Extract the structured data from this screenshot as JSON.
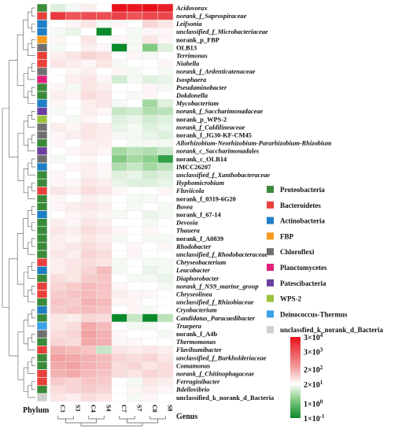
{
  "chart_data": {
    "type": "heatmap",
    "xlabel": "Genus",
    "row_annotation_label": "Phylum",
    "columns": [
      "C3",
      "S3",
      "C4",
      "S4",
      "C7",
      "S7",
      "C8",
      "S8"
    ],
    "column_groups": [
      [
        "C3",
        "S3"
      ],
      [
        "C4",
        "S4"
      ],
      [
        "C7",
        "S7"
      ],
      [
        "C8",
        "S8"
      ]
    ],
    "rows": [
      {
        "name": "Acidovorax",
        "italic": true,
        "phylum": "Proteobacteria",
        "values": [
          1.0,
          1.2,
          1.5,
          1.3,
          4.5,
          4.4,
          4.5,
          4.3
        ]
      },
      {
        "name": "norank_f_Saprospiraceae",
        "italic": true,
        "phylum": "Bacteroidetes",
        "values": [
          3.9,
          3.5,
          3.6,
          3.6,
          3.8,
          3.5,
          3.7,
          3.7
        ]
      },
      {
        "name": "Leifsonia",
        "italic": true,
        "phylum": "Actinobacteria",
        "values": [
          1.3,
          1.4,
          1.6,
          1.2,
          1.4,
          1.3,
          1.8,
          1.6
        ]
      },
      {
        "name": "unclassified_f_Microbacteriaceae",
        "italic": true,
        "phylum": "Actinobacteria",
        "values": [
          1.2,
          1.1,
          1.3,
          -1.0,
          1.3,
          1.2,
          1.4,
          1.4
        ]
      },
      {
        "name": "norank_p_FBP",
        "italic": false,
        "phylum": "FBP",
        "values": [
          1.4,
          1.3,
          1.6,
          1.3,
          1.4,
          1.2,
          1.6,
          1.4
        ]
      },
      {
        "name": "OLB13",
        "italic": false,
        "phylum": "Chloroflexi",
        "values": [
          1.2,
          1.3,
          1.5,
          1.4,
          -1.0,
          1.2,
          0.2,
          1.0
        ]
      },
      {
        "name": "Terrimonas",
        "italic": true,
        "phylum": "Bacteroidetes",
        "values": [
          1.5,
          1.6,
          1.8,
          1.7,
          1.3,
          1.4,
          1.2,
          1.3
        ]
      },
      {
        "name": "Niabella",
        "italic": true,
        "phylum": "Bacteroidetes",
        "values": [
          1.6,
          1.5,
          1.4,
          1.6,
          1.2,
          1.3,
          1.3,
          1.4
        ]
      },
      {
        "name": "norank_f_Ardenticatenaceae",
        "italic": true,
        "phylum": "Chloroflexi",
        "values": [
          1.3,
          1.4,
          1.5,
          1.3,
          1.4,
          1.2,
          1.3,
          1.2
        ]
      },
      {
        "name": "Isosphaera",
        "italic": true,
        "phylum": "Planctomycetes",
        "values": [
          1.3,
          1.5,
          1.6,
          1.4,
          0.9,
          1.2,
          1.0,
          1.1
        ]
      },
      {
        "name": "Pseudaminobacter",
        "italic": true,
        "phylum": "Proteobacteria",
        "values": [
          1.4,
          1.2,
          1.6,
          1.5,
          1.3,
          1.3,
          1.4,
          1.2
        ]
      },
      {
        "name": "Dokdonella",
        "italic": true,
        "phylum": "Proteobacteria",
        "values": [
          1.5,
          1.4,
          1.7,
          1.6,
          1.3,
          1.2,
          1.4,
          1.3
        ]
      },
      {
        "name": "Mycobacterium",
        "italic": true,
        "phylum": "Actinobacteria",
        "values": [
          1.4,
          1.3,
          1.5,
          1.6,
          1.2,
          1.3,
          0.5,
          1.0
        ]
      },
      {
        "name": "norank_f_Saccharimonadaceae",
        "italic": true,
        "phylum": "Patescibacteria",
        "values": [
          1.2,
          1.3,
          1.5,
          1.4,
          0.8,
          0.9,
          0.6,
          0.7
        ]
      },
      {
        "name": "norank_p_WPS-2",
        "italic": false,
        "phylum": "WPS-2",
        "values": [
          1.3,
          1.2,
          1.4,
          1.3,
          1.0,
          1.1,
          0.9,
          1.0
        ]
      },
      {
        "name": "norank_f_Caldilineaceae",
        "italic": true,
        "phylum": "Chloroflexi",
        "values": [
          1.5,
          1.4,
          1.6,
          1.5,
          1.1,
          1.2,
          1.0,
          1.1
        ]
      },
      {
        "name": "norank_f_JG30-KF-CM45",
        "italic": false,
        "phylum": "Chloroflexi",
        "values": [
          1.4,
          1.5,
          1.6,
          1.5,
          1.2,
          1.2,
          1.1,
          1.0
        ]
      },
      {
        "name": "Allorhizobium-Neorhizobium-Pararhizobium-Rhizobium",
        "italic": true,
        "phylum": "Proteobacteria",
        "values": [
          1.4,
          1.3,
          1.5,
          1.5,
          1.3,
          1.2,
          1.2,
          1.2
        ]
      },
      {
        "name": "norank_c_Saccharimonadales",
        "italic": true,
        "phylum": "Patescibacteria",
        "values": [
          1.3,
          1.4,
          1.5,
          1.4,
          0.5,
          0.7,
          0.6,
          0.8
        ]
      },
      {
        "name": "norank_c_OLB14",
        "italic": false,
        "phylum": "Chloroflexi",
        "values": [
          1.2,
          1.3,
          1.4,
          1.3,
          0.2,
          0.5,
          0.3,
          -0.6
        ]
      },
      {
        "name": "IMCC26207",
        "italic": false,
        "phylum": "Actinobacteria",
        "values": [
          1.3,
          1.4,
          1.5,
          1.4,
          0.6,
          0.8,
          0.5,
          0.7
        ]
      },
      {
        "name": "unclassified_f_Xanthobacteraceae",
        "italic": true,
        "phylum": "Proteobacteria",
        "values": [
          1.4,
          1.3,
          1.5,
          1.4,
          1.0,
          1.1,
          0.9,
          1.0
        ]
      },
      {
        "name": "Hyphomicrobium",
        "italic": true,
        "phylum": "Proteobacteria",
        "values": [
          1.4,
          1.4,
          1.6,
          1.5,
          1.1,
          1.0,
          1.0,
          1.1
        ]
      },
      {
        "name": "Fluviicola",
        "italic": true,
        "phylum": "Bacteroidetes",
        "values": [
          1.6,
          1.5,
          1.7,
          1.6,
          1.4,
          1.3,
          1.3,
          1.4
        ]
      },
      {
        "name": "norank_f_0319-6G20",
        "italic": false,
        "phylum": "Proteobacteria",
        "values": [
          1.4,
          1.3,
          1.5,
          1.4,
          1.3,
          1.2,
          1.2,
          1.3
        ]
      },
      {
        "name": "Bosea",
        "italic": true,
        "phylum": "Proteobacteria",
        "values": [
          1.4,
          1.5,
          1.6,
          1.5,
          1.3,
          1.2,
          1.3,
          1.2
        ]
      },
      {
        "name": "norank_f_67-14",
        "italic": false,
        "phylum": "Actinobacteria",
        "values": [
          1.3,
          1.4,
          1.5,
          1.4,
          1.2,
          1.3,
          1.1,
          1.2
        ]
      },
      {
        "name": "Devosia",
        "italic": true,
        "phylum": "Proteobacteria",
        "values": [
          1.5,
          1.4,
          1.6,
          1.5,
          1.3,
          1.3,
          1.2,
          1.3
        ]
      },
      {
        "name": "Thauera",
        "italic": true,
        "phylum": "Proteobacteria",
        "values": [
          1.6,
          1.5,
          1.7,
          1.6,
          1.4,
          1.3,
          1.4,
          1.3
        ]
      },
      {
        "name": "norank_f_A0839",
        "italic": false,
        "phylum": "Proteobacteria",
        "values": [
          1.5,
          1.4,
          1.6,
          1.5,
          1.2,
          1.3,
          1.2,
          1.2
        ]
      },
      {
        "name": "Rhodobacter",
        "italic": true,
        "phylum": "Proteobacteria",
        "values": [
          1.5,
          1.6,
          1.7,
          1.6,
          1.3,
          1.4,
          1.3,
          1.4
        ]
      },
      {
        "name": "unclassified_f_Rhodobacteraceae",
        "italic": true,
        "phylum": "Proteobacteria",
        "values": [
          1.6,
          1.5,
          1.8,
          1.7,
          1.3,
          1.4,
          1.3,
          1.3
        ]
      },
      {
        "name": "Chryseobacterium",
        "italic": true,
        "phylum": "Bacteroidetes",
        "values": [
          1.5,
          1.6,
          1.7,
          1.6,
          1.2,
          1.3,
          1.2,
          1.2
        ]
      },
      {
        "name": "Leucobacter",
        "italic": true,
        "phylum": "Actinobacteria",
        "values": [
          1.5,
          1.6,
          1.8,
          2.1,
          1.2,
          1.3,
          1.1,
          1.2
        ]
      },
      {
        "name": "Diaphorobacter",
        "italic": true,
        "phylum": "Proteobacteria",
        "values": [
          1.7,
          1.6,
          1.9,
          2.0,
          1.3,
          1.2,
          1.2,
          1.1
        ]
      },
      {
        "name": "norank_f_NS9_marine_group",
        "italic": true,
        "phylum": "Bacteroidetes",
        "values": [
          1.8,
          1.9,
          2.1,
          2.0,
          1.4,
          1.3,
          1.3,
          1.2
        ]
      },
      {
        "name": "Chryseolinea",
        "italic": true,
        "phylum": "Bacteroidetes",
        "values": [
          1.9,
          2.0,
          2.1,
          2.0,
          1.5,
          1.4,
          1.4,
          1.3
        ]
      },
      {
        "name": "unclassified_f_Rhizobiaceae",
        "italic": true,
        "phylum": "Proteobacteria",
        "values": [
          2.0,
          1.9,
          2.2,
          2.1,
          1.4,
          1.4,
          1.3,
          1.3
        ]
      },
      {
        "name": "Cryobacterium",
        "italic": true,
        "phylum": "Actinobacteria",
        "values": [
          1.9,
          2.0,
          2.1,
          2.0,
          1.3,
          1.4,
          1.2,
          1.3
        ]
      },
      {
        "name": "Candidatus_Paracaedibacter",
        "italic": true,
        "phylum": "Proteobacteria",
        "values": [
          1.6,
          1.5,
          1.8,
          1.7,
          -1.0,
          0.8,
          -1.0,
          0.7
        ]
      },
      {
        "name": "Truepera",
        "italic": true,
        "phylum": "Deinococcus-Thermus",
        "values": [
          1.6,
          1.7,
          2.3,
          2.1,
          1.3,
          1.2,
          1.2,
          1.3
        ]
      },
      {
        "name": "norank_f_A4b",
        "italic": false,
        "phylum": "Chloroflexi",
        "values": [
          1.7,
          1.8,
          2.4,
          2.2,
          1.4,
          1.3,
          1.3,
          1.2
        ]
      },
      {
        "name": "Thermomonas",
        "italic": true,
        "phylum": "Proteobacteria",
        "values": [
          1.8,
          1.7,
          2.3,
          2.2,
          1.4,
          1.4,
          1.3,
          1.3
        ]
      },
      {
        "name": "Flavihumibacter",
        "italic": true,
        "phylum": "Bacteroidetes",
        "values": [
          2.2,
          2.1,
          2.0,
          0.8,
          1.6,
          1.5,
          1.6,
          1.5
        ]
      },
      {
        "name": "unclassified_f_Burkholderiaceae",
        "italic": true,
        "phylum": "Proteobacteria",
        "values": [
          2.4,
          2.3,
          2.2,
          2.1,
          1.8,
          1.7,
          1.8,
          1.6
        ]
      },
      {
        "name": "Comamonas",
        "italic": true,
        "phylum": "Proteobacteria",
        "values": [
          2.3,
          2.4,
          2.2,
          2.1,
          1.7,
          1.8,
          1.6,
          1.7
        ]
      },
      {
        "name": "norank_f_Chitinophagaceae",
        "italic": true,
        "phylum": "Bacteroidetes",
        "values": [
          2.2,
          2.3,
          2.1,
          2.0,
          1.7,
          1.6,
          1.8,
          1.7
        ]
      },
      {
        "name": "Ferruginibacter",
        "italic": true,
        "phylum": "Bacteroidetes",
        "values": [
          1.9,
          1.8,
          2.0,
          1.9,
          1.3,
          1.2,
          1.6,
          1.5
        ]
      },
      {
        "name": "Bdellovibrio",
        "italic": true,
        "phylum": "Proteobacteria",
        "values": [
          1.7,
          1.8,
          1.9,
          1.8,
          1.3,
          1.4,
          1.5,
          1.4
        ]
      },
      {
        "name": "unclassified_k_norank_d_Bacteria",
        "italic": false,
        "phylum": "unclassfied_k_norank_d_Bacteria",
        "values": [
          1.6,
          1.5,
          1.7,
          1.6,
          1.3,
          1.2,
          1.4,
          1.3
        ]
      }
    ],
    "phylum_legend": [
      {
        "name": "Proteobacteria",
        "color": "#3a8a3a"
      },
      {
        "name": "Bacteroidetes",
        "color": "#e8403a"
      },
      {
        "name": "Actinobacteria",
        "color": "#1f7fc4"
      },
      {
        "name": "FBP",
        "color": "#f39a1e"
      },
      {
        "name": "Chloroflexi",
        "color": "#707070"
      },
      {
        "name": "Planctomycetes",
        "color": "#e0207a"
      },
      {
        "name": "Patescibacteria",
        "color": "#6a3fa0"
      },
      {
        "name": "WPS-2",
        "color": "#9ac43a"
      },
      {
        "name": "Deinococcus-Thermus",
        "color": "#3aa0e8"
      },
      {
        "name": "unclassfied_k_norank_d_Bacteria",
        "color": "#cfcfcf"
      }
    ],
    "color_scale": {
      "labels": [
        {
          "text": "3×10",
          "exp": "4",
          "value": 4.5
        },
        {
          "text": "3×10",
          "exp": "3",
          "value": 3.5
        },
        {
          "text": "2×10",
          "exp": "2",
          "value": 2.3
        },
        {
          "text": "2×10",
          "exp": "1",
          "value": 1.3
        },
        {
          "text": "1×10",
          "exp": "0",
          "value": 0.0
        },
        {
          "text": "1×10",
          "exp": "-1",
          "value": -1.0
        }
      ],
      "stops": [
        {
          "value": -1.0,
          "color": "#0a8a2a"
        },
        {
          "value": 0.3,
          "color": "#8ccf8a"
        },
        {
          "value": 1.3,
          "color": "#ffffff"
        },
        {
          "value": 2.4,
          "color": "#f2a0a0"
        },
        {
          "value": 4.5,
          "color": "#e8101a"
        }
      ],
      "min": -1.0,
      "max": 4.5
    }
  }
}
